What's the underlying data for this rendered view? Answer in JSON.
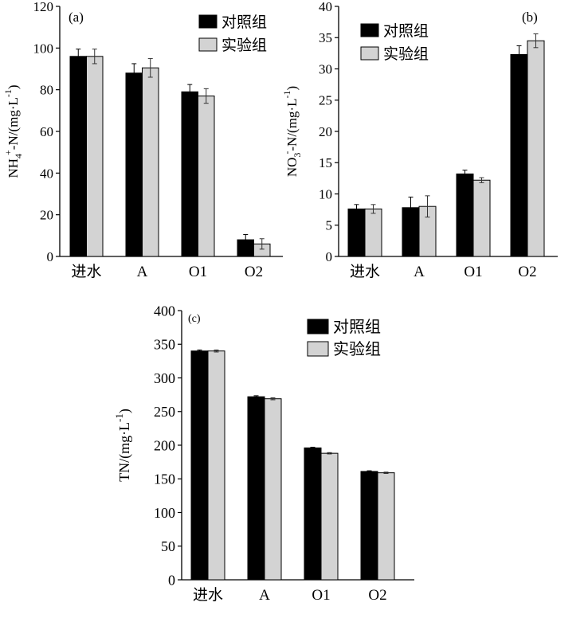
{
  "chart_data": [
    {
      "type": "bar",
      "panel_label": "(a)",
      "ylabel": "NH4+-N/(mg·L-1)",
      "ylabel_parts": {
        "pre": "NH",
        "sub": "4",
        "sup": "+",
        "post": "-N/(mg·L",
        "unit_sup": "-1",
        "end": ")"
      },
      "categories": [
        "进水",
        "A",
        "O1",
        "O2"
      ],
      "ylim": [
        0,
        120
      ],
      "yticks": [
        0,
        20,
        40,
        60,
        80,
        100,
        120
      ],
      "series": [
        {
          "name": "对照组",
          "color": "#000000",
          "values": [
            96,
            88,
            79,
            8
          ],
          "errors": [
            3.5,
            4.5,
            3.5,
            2.5
          ]
        },
        {
          "name": "实验组",
          "color": "#d3d3d3",
          "values": [
            96,
            90.5,
            77,
            6
          ],
          "errors": [
            3.5,
            4.5,
            3.5,
            2.5
          ]
        }
      ],
      "legend": "top-right"
    },
    {
      "type": "bar",
      "panel_label": "(b)",
      "ylabel": "NO3--N/(mg·L-1)",
      "ylabel_parts": {
        "pre": "NO",
        "sub": "3",
        "sup": "-",
        "post": "-N/(mg·L",
        "unit_sup": "-1",
        "end": ")"
      },
      "categories": [
        "进水",
        "A",
        "O1",
        "O2"
      ],
      "ylim": [
        0,
        40
      ],
      "yticks": [
        0,
        5,
        10,
        15,
        20,
        25,
        30,
        35,
        40
      ],
      "series": [
        {
          "name": "对照组",
          "color": "#000000",
          "values": [
            7.6,
            7.8,
            13.2,
            32.3
          ],
          "errors": [
            0.7,
            1.7,
            0.6,
            1.4
          ]
        },
        {
          "name": "实验组",
          "color": "#d3d3d3",
          "values": [
            7.6,
            8.0,
            12.2,
            34.5
          ],
          "errors": [
            0.7,
            1.7,
            0.4,
            1.1
          ]
        }
      ],
      "legend": "top-left"
    },
    {
      "type": "bar",
      "panel_label": "(c)",
      "ylabel": "TN/(mg·L-1)",
      "ylabel_parts": {
        "pre": "TN/(mg·L",
        "sub": "",
        "sup": "",
        "post": "",
        "unit_sup": "-1",
        "end": ")"
      },
      "categories": [
        "进水",
        "A",
        "O1",
        "O2"
      ],
      "ylim": [
        0,
        400
      ],
      "yticks": [
        0,
        50,
        100,
        150,
        200,
        250,
        300,
        350,
        400
      ],
      "series": [
        {
          "name": "对照组",
          "color": "#000000",
          "values": [
            340,
            272,
            196,
            161
          ],
          "errors": [
            1.5,
            1.5,
            1,
            1
          ]
        },
        {
          "name": "实验组",
          "color": "#d3d3d3",
          "values": [
            340,
            269,
            188,
            159
          ],
          "errors": [
            1.5,
            1.5,
            1,
            1
          ]
        }
      ],
      "legend": "top-left"
    }
  ]
}
